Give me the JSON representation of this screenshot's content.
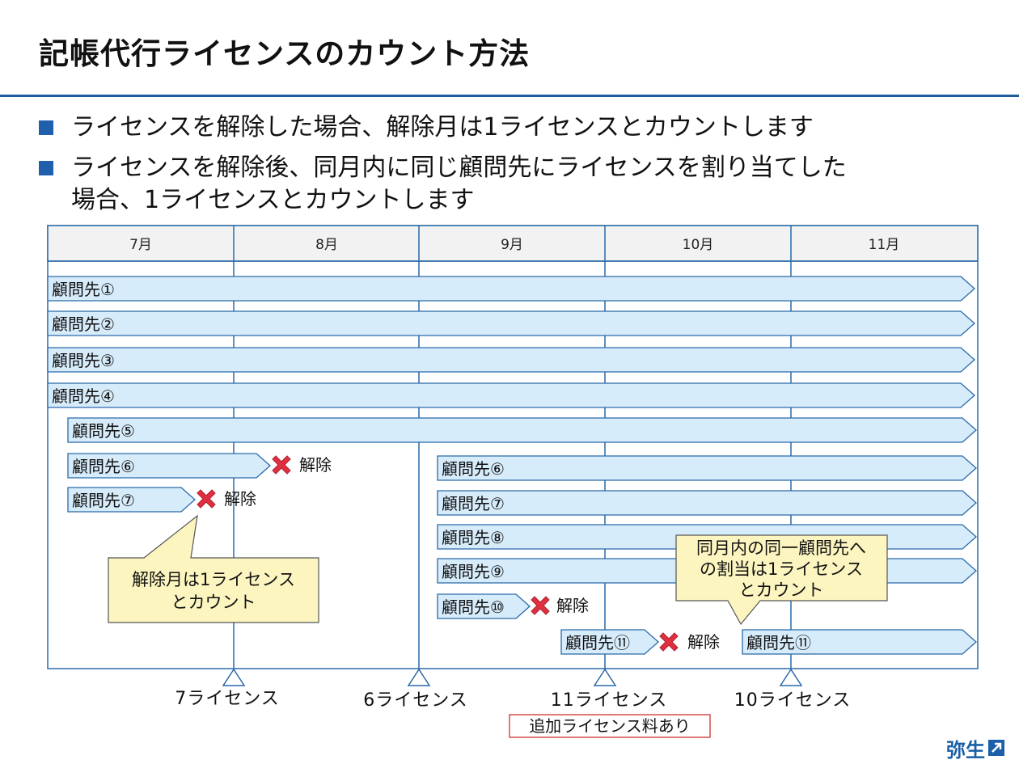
{
  "title": "記帳代行ライセンスのカウント方法",
  "bullets": [
    "ライセンスを解除した場合、解除月は1ライセンスとカウントします",
    "ライセンスを解除後、同月内に同じ顧問先にライセンスを割り当てした",
    "場合、1ライセンスとカウントします"
  ],
  "months": [
    "7月",
    "8月",
    "9月",
    "10月",
    "11月"
  ],
  "bars": [
    {
      "label": "顧問先①"
    },
    {
      "label": "顧問先②"
    },
    {
      "label": "顧問先③"
    },
    {
      "label": "顧問先④"
    },
    {
      "label": "顧問先⑤"
    },
    {
      "label": "顧問先⑥",
      "release": "解除"
    },
    {
      "label": "顧問先⑦",
      "release": "解除"
    },
    {
      "label": "顧問先⑥"
    },
    {
      "label": "顧問先⑦"
    },
    {
      "label": "顧問先⑧"
    },
    {
      "label": "顧問先⑨"
    },
    {
      "label": "顧問先⑩",
      "release": "解除"
    },
    {
      "label": "顧問先⑪",
      "release": "解除"
    },
    {
      "label": "顧問先⑪"
    }
  ],
  "callouts": [
    {
      "lines": [
        "解除月は1ライセンス",
        "とカウント"
      ]
    },
    {
      "lines": [
        "同月内の同一顧問先へ",
        "の割当は1ライセンス",
        "とカウント"
      ]
    }
  ],
  "counts": [
    "7ライセンス",
    "6ライセンス",
    "11ライセンス",
    "10ライセンス"
  ],
  "extra_fee_label": "追加ライセンス料あり",
  "logo": "弥生",
  "colors": {
    "accent": "#1e5c9c",
    "bar_fill": "#d7ecfb",
    "bar_stroke": "#2a6aa8",
    "callout_fill": "#fdf5c0",
    "release_mark": "#e03040",
    "extra_fee_border": "#d03030"
  }
}
